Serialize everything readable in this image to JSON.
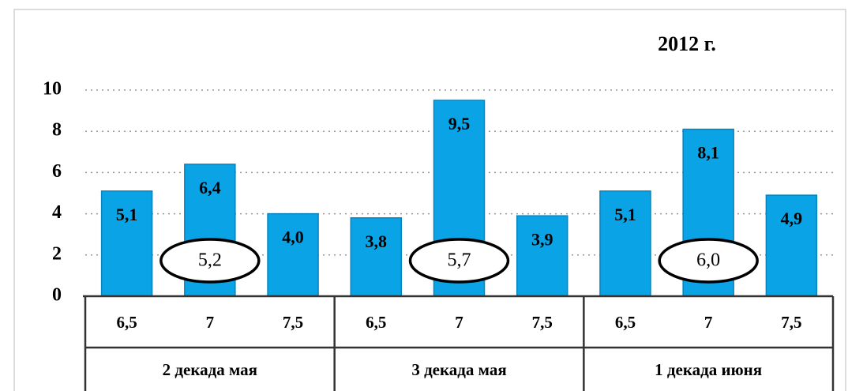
{
  "chart_data": {
    "type": "bar",
    "title": "2012 г.",
    "categories": [
      "6,5",
      "7",
      "7,5",
      "6,5",
      "7",
      "7,5",
      "6,5",
      "7",
      "7,5"
    ],
    "groups": [
      "2 декада мая",
      "3 декада мая",
      "1 декада июня"
    ],
    "values": [
      5.1,
      6.4,
      4.0,
      3.8,
      9.5,
      3.9,
      5.1,
      8.1,
      4.9
    ],
    "value_labels": [
      "5,1",
      "6,4",
      "4,0",
      "3,8",
      "9,5",
      "3,9",
      "5,1",
      "8,1",
      "4,9"
    ],
    "annotations": [
      "5,2",
      "5,7",
      "6,0"
    ],
    "color": "#0aa3e6",
    "ylim": [
      0,
      10
    ],
    "yticks": [
      0,
      2,
      4,
      6,
      8,
      10
    ],
    "grid": true
  }
}
